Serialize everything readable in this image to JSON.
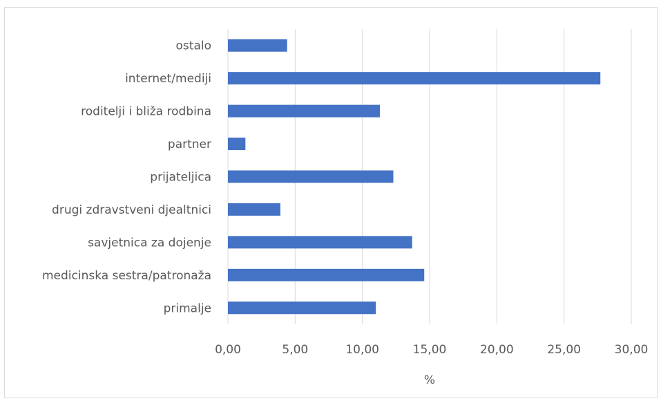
{
  "chart_data": {
    "type": "bar",
    "orientation": "horizontal",
    "categories": [
      "primalje",
      "medicinska sestra/patronaža",
      "savjetnica za dojenje",
      "drugi zdravstveni djealtnici",
      "prijateljica",
      "partner",
      "roditelji i bliža rodbina",
      "internet/mediji",
      "ostalo"
    ],
    "values": [
      11.0,
      14.6,
      13.7,
      3.9,
      12.3,
      1.3,
      11.3,
      27.7,
      4.4
    ],
    "xlabel": "%",
    "ylabel": "",
    "xlim": [
      0,
      30
    ],
    "xticks": [
      0,
      5,
      10,
      15,
      20,
      25,
      30
    ],
    "xtick_labels": [
      "0,00",
      "5,00",
      "10,00",
      "15,00",
      "20,00",
      "25,00",
      "30,00"
    ],
    "grid": true,
    "legend": "none",
    "bar_color": "#4472c4",
    "grid_color": "#d9d9d9"
  }
}
